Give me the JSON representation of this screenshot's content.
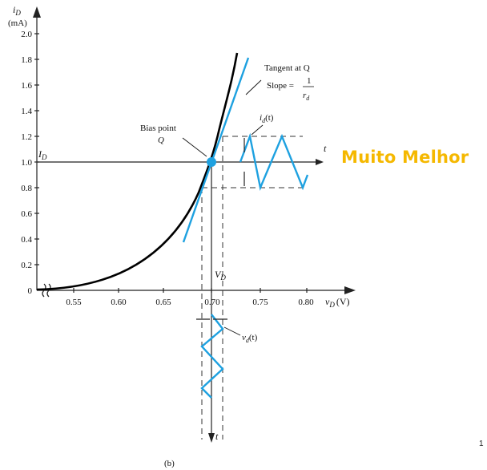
{
  "overlay_text": "Muito Melhor",
  "page_number": "1",
  "caption": "(b)",
  "axes": {
    "y_label_main": "i",
    "y_label_sub": "D",
    "y_unit": "(mA)",
    "x_label_main": "v",
    "x_label_sub": "D",
    "x_unit": "(V)",
    "t_label": "t",
    "y_ticks": [
      "0",
      "0.2",
      "0.4",
      "0.6",
      "0.8",
      "1.0",
      "1.2",
      "1.4",
      "1.6",
      "1.8",
      "2.0"
    ],
    "x_ticks": [
      "0.55",
      "0.60",
      "0.65",
      "0.70",
      "0.75",
      "0.80"
    ]
  },
  "labels": {
    "ID_main": "I",
    "ID_sub": "D",
    "VD_main": "V",
    "VD_sub": "D",
    "tangent_line1": "Tangent at Q",
    "slope_prefix": "Slope =",
    "slope_num": "1",
    "slope_den_main": "r",
    "slope_den_sub": "d",
    "bias_line1": "Bias point",
    "bias_line2": "Q",
    "id_t_main": "i",
    "id_t_sub": "d",
    "id_t_suffix": "(t)",
    "vd_t_main": "v",
    "vd_t_sub": "d",
    "vd_t_suffix": "(t)"
  },
  "colors": {
    "signal": "#1ea1e0",
    "curve": "#000000",
    "overlay": "#f5b800"
  },
  "chart_data": {
    "type": "line",
    "x_range": [
      0.55,
      0.8
    ],
    "y_range": [
      0,
      2.0
    ],
    "bias_point": {
      "vD": 0.7,
      "iD": 1.0
    },
    "signal_peak_current": [
      0.8,
      1.2
    ]
  }
}
